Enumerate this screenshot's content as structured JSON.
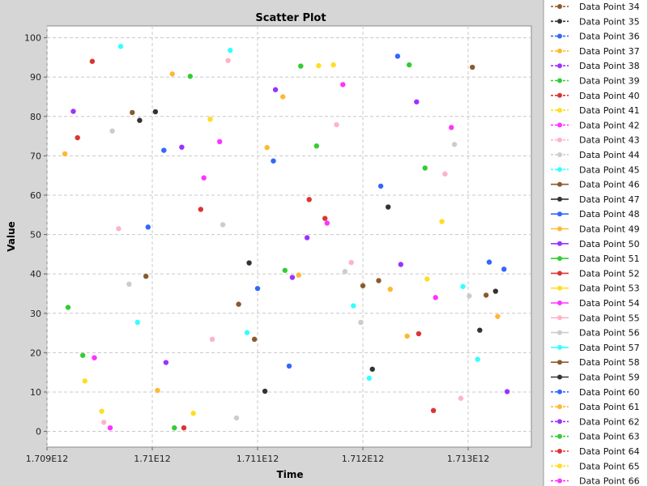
{
  "chart_data": {
    "type": "scatter",
    "title": "Scatter Plot",
    "xlabel": "Time",
    "ylabel": "Value",
    "xlim": [
      1709000000000,
      1713600000000
    ],
    "ylim": [
      -4,
      103
    ],
    "x_ticks": [
      {
        "value": 1709000000000,
        "label": "1.709E12"
      },
      {
        "value": 1710000000000,
        "label": "1.71E12"
      },
      {
        "value": 1711000000000,
        "label": "1.711E12"
      },
      {
        "value": 1712000000000,
        "label": "1.712E12"
      },
      {
        "value": 1713000000000,
        "label": "1.713E12"
      }
    ],
    "y_ticks": [
      0,
      10,
      20,
      30,
      40,
      50,
      60,
      70,
      80,
      90,
      100
    ],
    "grid": true,
    "legend_position": "right",
    "legend": [
      {
        "name": "Data Point 34",
        "color": "#8B5A2B",
        "dashed": true
      },
      {
        "name": "Data Point 35",
        "color": "#333333",
        "dashed": true
      },
      {
        "name": "Data Point 36",
        "color": "#3366FF",
        "dashed": true
      },
      {
        "name": "Data Point 37",
        "color": "#FFB833",
        "dashed": true
      },
      {
        "name": "Data Point 38",
        "color": "#9933FF",
        "dashed": true
      },
      {
        "name": "Data Point 39",
        "color": "#33CC33",
        "dashed": true
      },
      {
        "name": "Data Point 40",
        "color": "#DD3333",
        "dashed": true
      },
      {
        "name": "Data Point 41",
        "color": "#FFDD22",
        "dashed": true
      },
      {
        "name": "Data Point 42",
        "color": "#FF33FF",
        "dashed": true
      },
      {
        "name": "Data Point 43",
        "color": "#FFB3C6",
        "dashed": true
      },
      {
        "name": "Data Point 44",
        "color": "#CCCCCC",
        "dashed": true
      },
      {
        "name": "Data Point 45",
        "color": "#33FFFF",
        "dashed": true
      },
      {
        "name": "Data Point 46",
        "color": "#8B5A2B",
        "dashed": false
      },
      {
        "name": "Data Point 47",
        "color": "#333333",
        "dashed": false
      },
      {
        "name": "Data Point 48",
        "color": "#3366FF",
        "dashed": false
      },
      {
        "name": "Data Point 49",
        "color": "#FFB833",
        "dashed": false
      },
      {
        "name": "Data Point 50",
        "color": "#9933FF",
        "dashed": false
      },
      {
        "name": "Data Point 51",
        "color": "#33CC33",
        "dashed": false
      },
      {
        "name": "Data Point 52",
        "color": "#DD3333",
        "dashed": false
      },
      {
        "name": "Data Point 53",
        "color": "#FFDD22",
        "dashed": false
      },
      {
        "name": "Data Point 54",
        "color": "#FF33FF",
        "dashed": false
      },
      {
        "name": "Data Point 55",
        "color": "#FFB3C6",
        "dashed": false
      },
      {
        "name": "Data Point 56",
        "color": "#CCCCCC",
        "dashed": false
      },
      {
        "name": "Data Point 57",
        "color": "#33FFFF",
        "dashed": false
      },
      {
        "name": "Data Point 58",
        "color": "#8B5A2B",
        "dashed": false
      },
      {
        "name": "Data Point 59",
        "color": "#333333",
        "dashed": false
      },
      {
        "name": "Data Point 60",
        "color": "#3366FF",
        "dashed": true
      },
      {
        "name": "Data Point 61",
        "color": "#FFB833",
        "dashed": true
      },
      {
        "name": "Data Point 62",
        "color": "#9933FF",
        "dashed": true
      },
      {
        "name": "Data Point 63",
        "color": "#33CC33",
        "dashed": true
      },
      {
        "name": "Data Point 64",
        "color": "#DD3333",
        "dashed": true
      },
      {
        "name": "Data Point 65",
        "color": "#FFDD22",
        "dashed": true
      },
      {
        "name": "Data Point 66",
        "color": "#FF33FF",
        "dashed": true
      }
    ],
    "points": [
      {
        "x": 1709170000000,
        "y": 70.5,
        "color": "#FFB833"
      },
      {
        "x": 1709200000000,
        "y": 31.5,
        "color": "#33CC33"
      },
      {
        "x": 1709250000000,
        "y": 81.3,
        "color": "#9933FF"
      },
      {
        "x": 1709290000000,
        "y": 74.6,
        "color": "#DD3333"
      },
      {
        "x": 1709340000000,
        "y": 19.3,
        "color": "#33CC33"
      },
      {
        "x": 1709360000000,
        "y": 12.8,
        "color": "#FFDD22"
      },
      {
        "x": 1709430000000,
        "y": 94.0,
        "color": "#DD3333"
      },
      {
        "x": 1709450000000,
        "y": 18.7,
        "color": "#FF33FF"
      },
      {
        "x": 1709520000000,
        "y": 5.1,
        "color": "#FFDD22"
      },
      {
        "x": 1709540000000,
        "y": 2.3,
        "color": "#FFB3C6"
      },
      {
        "x": 1709600000000,
        "y": 0.9,
        "color": "#FF33FF"
      },
      {
        "x": 1709620000000,
        "y": 76.3,
        "color": "#CCCCCC"
      },
      {
        "x": 1709680000000,
        "y": 51.5,
        "color": "#FFB3C6"
      },
      {
        "x": 1709700000000,
        "y": 97.8,
        "color": "#33FFFF"
      },
      {
        "x": 1709780000000,
        "y": 37.4,
        "color": "#CCCCCC"
      },
      {
        "x": 1709810000000,
        "y": 81.0,
        "color": "#8B5A2B"
      },
      {
        "x": 1709860000000,
        "y": 27.7,
        "color": "#33FFFF"
      },
      {
        "x": 1709880000000,
        "y": 79.0,
        "color": "#333333"
      },
      {
        "x": 1709940000000,
        "y": 39.4,
        "color": "#8B5A2B"
      },
      {
        "x": 1709960000000,
        "y": 51.9,
        "color": "#3366FF"
      },
      {
        "x": 1710030000000,
        "y": 81.2,
        "color": "#333333"
      },
      {
        "x": 1710050000000,
        "y": 10.4,
        "color": "#FFB833"
      },
      {
        "x": 1710110000000,
        "y": 71.4,
        "color": "#3366FF"
      },
      {
        "x": 1710130000000,
        "y": 17.5,
        "color": "#9933FF"
      },
      {
        "x": 1710190000000,
        "y": 90.8,
        "color": "#FFB833"
      },
      {
        "x": 1710210000000,
        "y": 0.9,
        "color": "#33CC33"
      },
      {
        "x": 1710280000000,
        "y": 72.2,
        "color": "#9933FF"
      },
      {
        "x": 1710300000000,
        "y": 0.9,
        "color": "#DD3333"
      },
      {
        "x": 1710360000000,
        "y": 90.2,
        "color": "#33CC33"
      },
      {
        "x": 1710390000000,
        "y": 4.6,
        "color": "#FFDD22"
      },
      {
        "x": 1710460000000,
        "y": 56.4,
        "color": "#DD3333"
      },
      {
        "x": 1710490000000,
        "y": 64.4,
        "color": "#FF33FF"
      },
      {
        "x": 1710550000000,
        "y": 79.3,
        "color": "#FFDD22"
      },
      {
        "x": 1710570000000,
        "y": 23.4,
        "color": "#FFB3C6"
      },
      {
        "x": 1710640000000,
        "y": 73.6,
        "color": "#FF33FF"
      },
      {
        "x": 1710670000000,
        "y": 52.5,
        "color": "#CCCCCC"
      },
      {
        "x": 1710720000000,
        "y": 94.2,
        "color": "#FFB3C6"
      },
      {
        "x": 1710740000000,
        "y": 96.8,
        "color": "#33FFFF"
      },
      {
        "x": 1710800000000,
        "y": 3.4,
        "color": "#CCCCCC"
      },
      {
        "x": 1710820000000,
        "y": 32.3,
        "color": "#8B5A2B"
      },
      {
        "x": 1710900000000,
        "y": 25.1,
        "color": "#33FFFF"
      },
      {
        "x": 1710920000000,
        "y": 42.8,
        "color": "#333333"
      },
      {
        "x": 1710970000000,
        "y": 23.4,
        "color": "#8B5A2B"
      },
      {
        "x": 1711000000000,
        "y": 36.3,
        "color": "#3366FF"
      },
      {
        "x": 1711070000000,
        "y": 10.2,
        "color": "#333333"
      },
      {
        "x": 1711090000000,
        "y": 72.1,
        "color": "#FFB833"
      },
      {
        "x": 1711150000000,
        "y": 68.7,
        "color": "#3366FF"
      },
      {
        "x": 1711170000000,
        "y": 86.8,
        "color": "#9933FF"
      },
      {
        "x": 1711240000000,
        "y": 85.0,
        "color": "#FFB833"
      },
      {
        "x": 1711260000000,
        "y": 40.9,
        "color": "#33CC33"
      },
      {
        "x": 1711300000000,
        "y": 16.6,
        "color": "#3366FF"
      },
      {
        "x": 1711330000000,
        "y": 39.1,
        "color": "#9933FF"
      },
      {
        "x": 1711390000000,
        "y": 39.7,
        "color": "#FFB833"
      },
      {
        "x": 1711410000000,
        "y": 92.8,
        "color": "#33CC33"
      },
      {
        "x": 1711470000000,
        "y": 49.2,
        "color": "#9933FF"
      },
      {
        "x": 1711490000000,
        "y": 58.9,
        "color": "#DD3333"
      },
      {
        "x": 1711560000000,
        "y": 72.5,
        "color": "#33CC33"
      },
      {
        "x": 1711580000000,
        "y": 92.9,
        "color": "#FFDD22"
      },
      {
        "x": 1711640000000,
        "y": 54.1,
        "color": "#DD3333"
      },
      {
        "x": 1711660000000,
        "y": 52.9,
        "color": "#FF33FF"
      },
      {
        "x": 1711720000000,
        "y": 93.1,
        "color": "#FFDD22"
      },
      {
        "x": 1711750000000,
        "y": 77.9,
        "color": "#FFB3C6"
      },
      {
        "x": 1711810000000,
        "y": 88.1,
        "color": "#FF33FF"
      },
      {
        "x": 1711830000000,
        "y": 40.6,
        "color": "#CCCCCC"
      },
      {
        "x": 1711890000000,
        "y": 42.9,
        "color": "#FFB3C6"
      },
      {
        "x": 1711910000000,
        "y": 31.9,
        "color": "#33FFFF"
      },
      {
        "x": 1711980000000,
        "y": 27.7,
        "color": "#CCCCCC"
      },
      {
        "x": 1712000000000,
        "y": 37.0,
        "color": "#8B5A2B"
      },
      {
        "x": 1712060000000,
        "y": 13.5,
        "color": "#33FFFF"
      },
      {
        "x": 1712090000000,
        "y": 15.8,
        "color": "#333333"
      },
      {
        "x": 1712150000000,
        "y": 38.3,
        "color": "#8B5A2B"
      },
      {
        "x": 1712170000000,
        "y": 62.3,
        "color": "#3366FF"
      },
      {
        "x": 1712240000000,
        "y": 57.0,
        "color": "#333333"
      },
      {
        "x": 1712260000000,
        "y": 36.1,
        "color": "#FFB833"
      },
      {
        "x": 1712330000000,
        "y": 95.3,
        "color": "#3366FF"
      },
      {
        "x": 1712360000000,
        "y": 42.4,
        "color": "#9933FF"
      },
      {
        "x": 1712420000000,
        "y": 24.2,
        "color": "#FFB833"
      },
      {
        "x": 1712440000000,
        "y": 93.1,
        "color": "#33CC33"
      },
      {
        "x": 1712510000000,
        "y": 83.7,
        "color": "#9933FF"
      },
      {
        "x": 1712530000000,
        "y": 24.8,
        "color": "#DD3333"
      },
      {
        "x": 1712590000000,
        "y": 66.9,
        "color": "#33CC33"
      },
      {
        "x": 1712610000000,
        "y": 38.7,
        "color": "#FFDD22"
      },
      {
        "x": 1712670000000,
        "y": 5.3,
        "color": "#DD3333"
      },
      {
        "x": 1712690000000,
        "y": 34.0,
        "color": "#FF33FF"
      },
      {
        "x": 1712750000000,
        "y": 53.3,
        "color": "#FFDD22"
      },
      {
        "x": 1712780000000,
        "y": 65.4,
        "color": "#FFB3C6"
      },
      {
        "x": 1712840000000,
        "y": 77.2,
        "color": "#FF33FF"
      },
      {
        "x": 1712870000000,
        "y": 72.9,
        "color": "#CCCCCC"
      },
      {
        "x": 1712930000000,
        "y": 8.4,
        "color": "#FFB3C6"
      },
      {
        "x": 1712950000000,
        "y": 36.8,
        "color": "#33FFFF"
      },
      {
        "x": 1713010000000,
        "y": 34.4,
        "color": "#CCCCCC"
      },
      {
        "x": 1713040000000,
        "y": 92.5,
        "color": "#8B5A2B"
      },
      {
        "x": 1713090000000,
        "y": 18.3,
        "color": "#33FFFF"
      },
      {
        "x": 1713110000000,
        "y": 25.7,
        "color": "#333333"
      },
      {
        "x": 1713170000000,
        "y": 34.6,
        "color": "#8B5A2B"
      },
      {
        "x": 1713200000000,
        "y": 43.0,
        "color": "#3366FF"
      },
      {
        "x": 1713260000000,
        "y": 35.6,
        "color": "#333333"
      },
      {
        "x": 1713280000000,
        "y": 29.2,
        "color": "#FFB833"
      },
      {
        "x": 1713340000000,
        "y": 41.2,
        "color": "#3366FF"
      },
      {
        "x": 1713370000000,
        "y": 10.1,
        "color": "#9933FF"
      }
    ]
  }
}
